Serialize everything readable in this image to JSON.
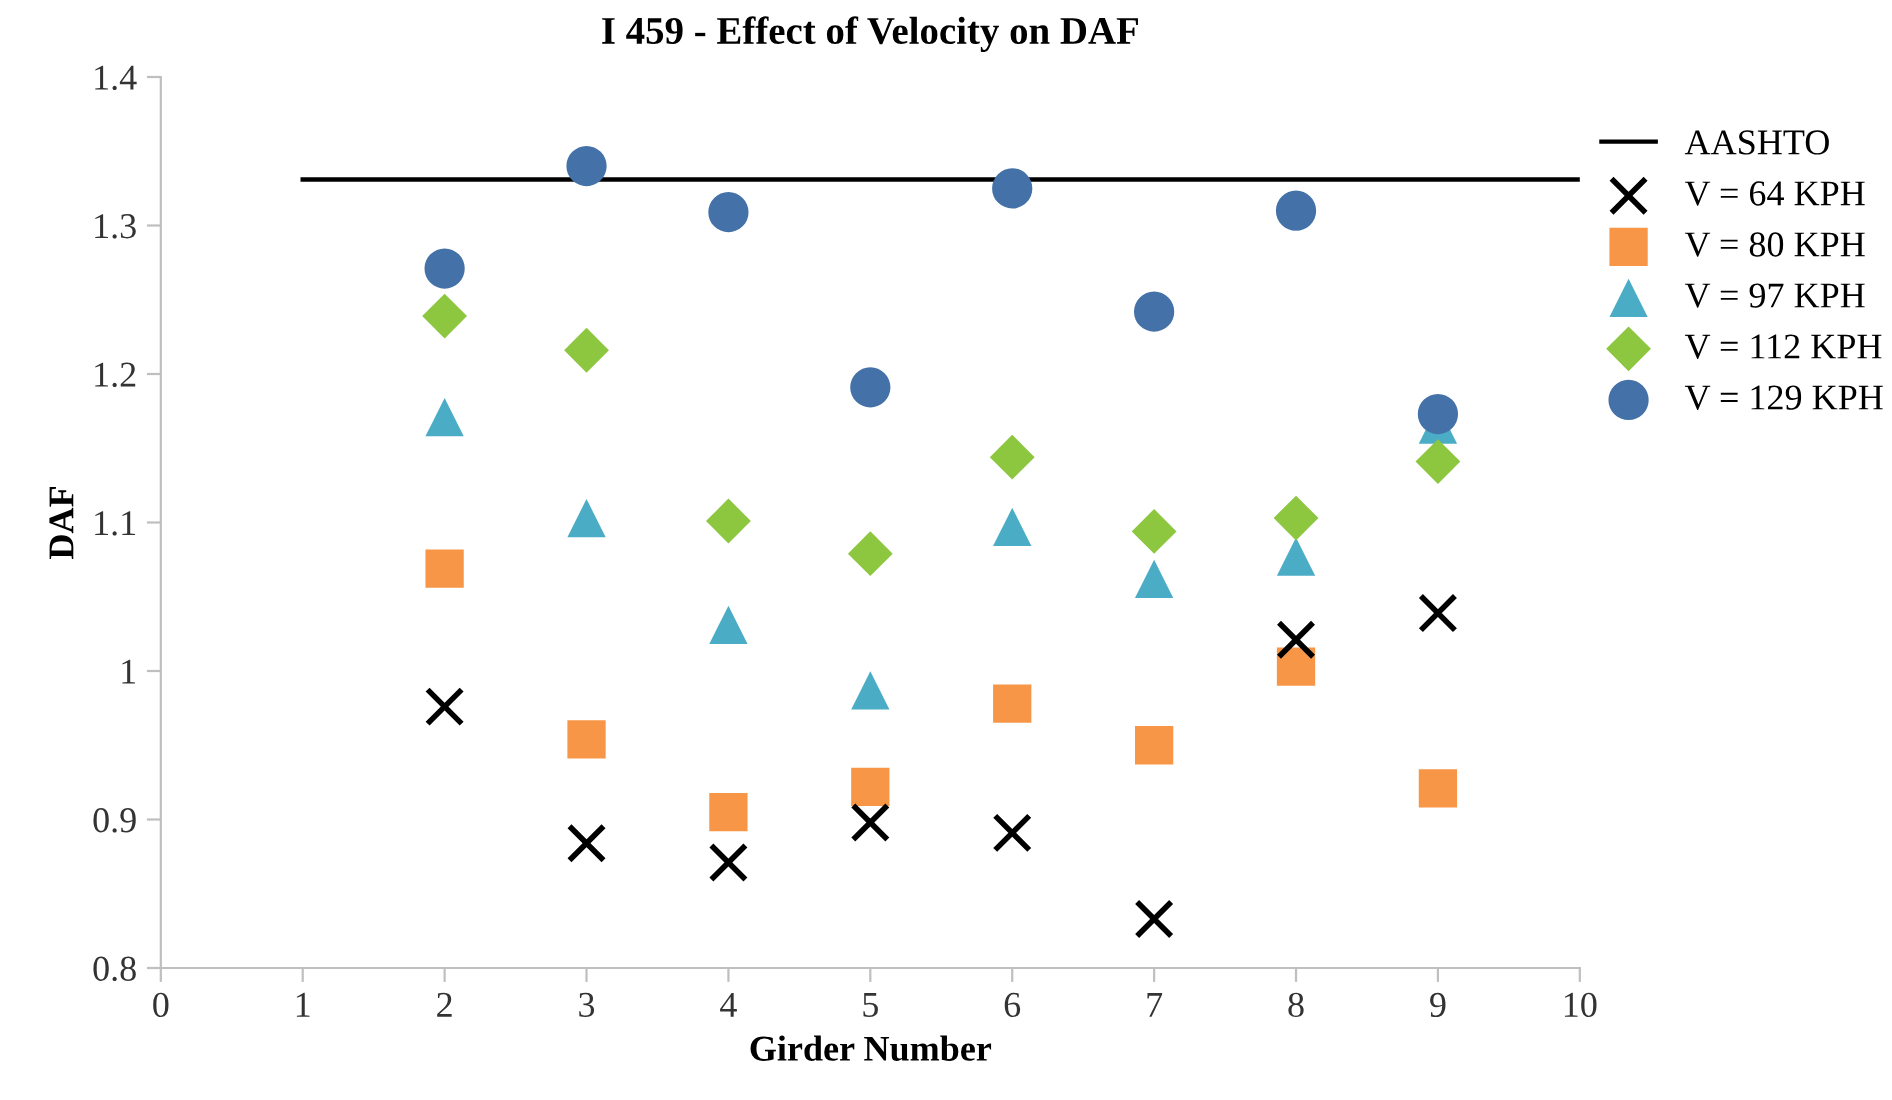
{
  "chart_data": {
    "type": "scatter",
    "title": "I 459 - Effect of Velocity on DAF",
    "xlabel": "Girder Number",
    "ylabel": "DAF",
    "xlim": [
      0,
      10
    ],
    "xticks": [
      0,
      1,
      2,
      3,
      4,
      5,
      6,
      7,
      8,
      9,
      10
    ],
    "ylim": [
      0.8,
      1.4
    ],
    "yticks": [
      0.8,
      0.9,
      1,
      1.1,
      1.2,
      1.3,
      1.4
    ],
    "grid": false,
    "legend": "right",
    "series": [
      {
        "name": "AASHTO",
        "type": "line",
        "color": "#000000",
        "marker": "none",
        "x": [
          1,
          10
        ],
        "values": [
          1.331,
          1.331
        ]
      },
      {
        "name": "V = 64 KPH",
        "color": "#000000",
        "marker": "cross",
        "x": [
          2,
          3,
          4,
          5,
          6,
          7,
          8,
          9
        ],
        "values": [
          0.976,
          0.884,
          0.871,
          0.898,
          0.891,
          0.833,
          1.021,
          1.039
        ]
      },
      {
        "name": "V = 80 KPH",
        "color": "#f79646",
        "marker": "square",
        "x": [
          2,
          3,
          4,
          5,
          6,
          7,
          8,
          9
        ],
        "values": [
          1.069,
          0.954,
          0.905,
          0.922,
          0.978,
          0.95,
          1.003,
          0.921
        ]
      },
      {
        "name": "V = 97 KPH",
        "color": "#4bacc6",
        "marker": "triangle",
        "x": [
          2,
          3,
          4,
          5,
          6,
          7,
          8,
          9
        ],
        "values": [
          1.171,
          1.103,
          1.031,
          0.987,
          1.097,
          1.062,
          1.077,
          1.166
        ]
      },
      {
        "name": "V = 112 KPH",
        "color": "#8dc63f",
        "marker": "diamond",
        "x": [
          2,
          3,
          4,
          5,
          6,
          7,
          8,
          9
        ],
        "values": [
          1.239,
          1.216,
          1.101,
          1.079,
          1.144,
          1.094,
          1.103,
          1.141
        ]
      },
      {
        "name": "V = 129 KPH",
        "color": "#4472a8",
        "marker": "circle",
        "x": [
          2,
          3,
          4,
          5,
          6,
          7,
          8,
          9
        ],
        "values": [
          1.271,
          1.34,
          1.309,
          1.191,
          1.325,
          1.242,
          1.31,
          1.173
        ]
      }
    ]
  }
}
